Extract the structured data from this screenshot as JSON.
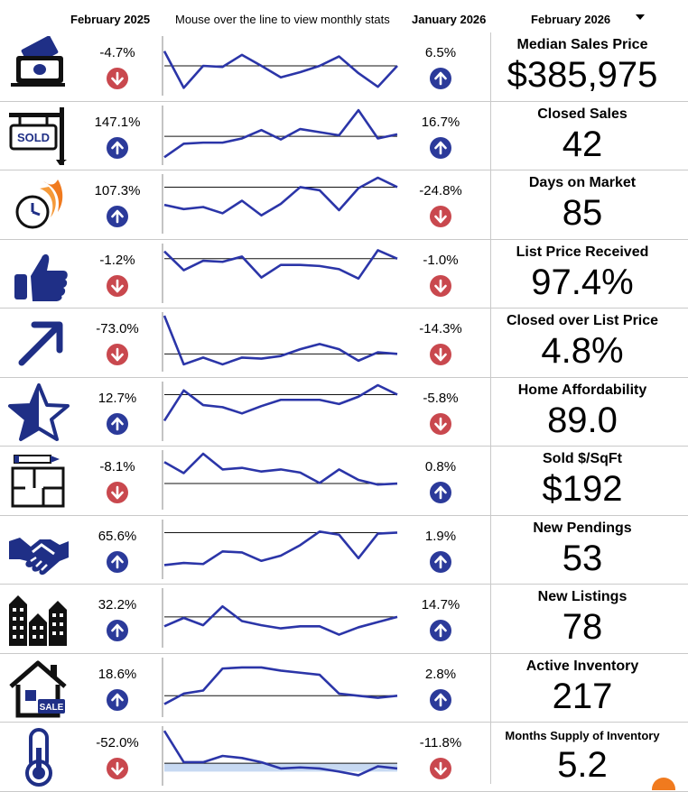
{
  "header": {
    "col_prev_year": "February 2025",
    "hint": "Mouse over the line to view monthly stats",
    "col_prev_month": "January 2026",
    "selected_month": "February 2026"
  },
  "colors": {
    "line": "#2b35a8",
    "up": "#2b3a9a",
    "down": "#c9484e",
    "icon": "#1f2f86",
    "band": "#c7d9f2"
  },
  "metrics": [
    {
      "name": "Median Sales Price",
      "value": "$385,975",
      "yoy": "-4.7%",
      "yoy_dir": "down",
      "mom": "6.5%",
      "mom_dir": "up",
      "icon": "money-icon"
    },
    {
      "name": "Closed Sales",
      "value": "42",
      "yoy": "147.1%",
      "yoy_dir": "up",
      "mom": "16.7%",
      "mom_dir": "up",
      "icon": "sold-sign-icon"
    },
    {
      "name": "Days on Market",
      "value": "85",
      "yoy": "107.3%",
      "yoy_dir": "up",
      "mom": "-24.8%",
      "mom_dir": "down",
      "icon": "fast-clock-icon"
    },
    {
      "name": "List Price Received",
      "value": "97.4%",
      "yoy": "-1.2%",
      "yoy_dir": "down",
      "mom": "-1.0%",
      "mom_dir": "down",
      "icon": "thumbs-up-icon"
    },
    {
      "name": "Closed over List Price",
      "value": "4.8%",
      "yoy": "-73.0%",
      "yoy_dir": "down",
      "mom": "-14.3%",
      "mom_dir": "down",
      "icon": "trend-arrow-icon"
    },
    {
      "name": "Home Affordability",
      "value": "89.0",
      "yoy": "12.7%",
      "yoy_dir": "up",
      "mom": "-5.8%",
      "mom_dir": "down",
      "icon": "star-icon"
    },
    {
      "name": "Sold $/SqFt",
      "value": "$192",
      "yoy": "-8.1%",
      "yoy_dir": "down",
      "mom": "0.8%",
      "mom_dir": "up",
      "icon": "floor-plan-icon"
    },
    {
      "name": "New Pendings",
      "value": "53",
      "yoy": "65.6%",
      "yoy_dir": "up",
      "mom": "1.9%",
      "mom_dir": "up",
      "icon": "handshake-icon"
    },
    {
      "name": "New Listings",
      "value": "78",
      "yoy": "32.2%",
      "yoy_dir": "up",
      "mom": "14.7%",
      "mom_dir": "up",
      "icon": "buildings-icon"
    },
    {
      "name": "Active Inventory",
      "value": "217",
      "yoy": "18.6%",
      "yoy_dir": "up",
      "mom": "2.8%",
      "mom_dir": "up",
      "icon": "house-sale-icon"
    },
    {
      "name": "Months Supply of Inventory",
      "value": "5.2",
      "yoy": "-52.0%",
      "yoy_dir": "down",
      "mom": "-11.8%",
      "mom_dir": "down",
      "icon": "thermometer-icon"
    }
  ],
  "chart_data": {
    "type": "line",
    "note_scale": "each sparkline normalized 0-1 (0 = bottom of plot, 1 = top); ref = horizontal reference line level",
    "x": [
      1,
      2,
      3,
      4,
      5,
      6,
      7,
      8,
      9,
      10,
      11,
      12,
      13
    ],
    "series": [
      {
        "values": [
          0.78,
          0.08,
          0.5,
          0.48,
          0.71,
          0.5,
          0.28,
          0.38,
          0.5,
          0.68,
          0.36,
          0.1,
          0.5
        ],
        "ref": 0.5
      },
      {
        "values": [
          0.08,
          0.34,
          0.36,
          0.36,
          0.44,
          0.6,
          0.42,
          0.62,
          0.56,
          0.5,
          0.98,
          0.44,
          0.52
        ],
        "ref": 0.48
      },
      {
        "values": [
          0.48,
          0.4,
          0.44,
          0.32,
          0.56,
          0.28,
          0.5,
          0.82,
          0.76,
          0.38,
          0.8,
          1.0,
          0.82
        ],
        "ref": 0.82
      },
      {
        "values": [
          0.92,
          0.56,
          0.74,
          0.72,
          0.82,
          0.42,
          0.66,
          0.66,
          0.64,
          0.58,
          0.4,
          0.94,
          0.78
        ],
        "ref": 0.78
      },
      {
        "values": [
          1.0,
          0.07,
          0.2,
          0.07,
          0.2,
          0.18,
          0.23,
          0.36,
          0.46,
          0.36,
          0.14,
          0.3,
          0.27
        ],
        "ref": 0.27
      },
      {
        "values": [
          0.32,
          0.9,
          0.62,
          0.58,
          0.46,
          0.6,
          0.72,
          0.72,
          0.72,
          0.64,
          0.78,
          1.0,
          0.82
        ],
        "ref": 0.82
      },
      {
        "values": [
          0.84,
          0.63,
          1.0,
          0.7,
          0.73,
          0.66,
          0.7,
          0.64,
          0.44,
          0.7,
          0.5,
          0.41,
          0.43
        ],
        "ref": 0.43
      },
      {
        "values": [
          0.2,
          0.24,
          0.22,
          0.46,
          0.44,
          0.28,
          0.38,
          0.58,
          0.84,
          0.78,
          0.33,
          0.8,
          0.82
        ],
        "ref": 0.82
      },
      {
        "values": [
          0.34,
          0.5,
          0.36,
          0.72,
          0.44,
          0.36,
          0.3,
          0.34,
          0.34,
          0.18,
          0.32,
          0.42,
          0.52
        ],
        "ref": 0.52
      },
      {
        "values": [
          0.18,
          0.38,
          0.44,
          0.86,
          0.88,
          0.88,
          0.82,
          0.78,
          0.74,
          0.38,
          0.34,
          0.3,
          0.34
        ],
        "ref": 0.34
      },
      {
        "values": [
          0.98,
          0.38,
          0.38,
          0.5,
          0.46,
          0.38,
          0.26,
          0.28,
          0.26,
          0.2,
          0.13,
          0.3,
          0.26
        ],
        "ref": 0.36,
        "band": [
          0.2,
          0.36
        ]
      }
    ]
  }
}
